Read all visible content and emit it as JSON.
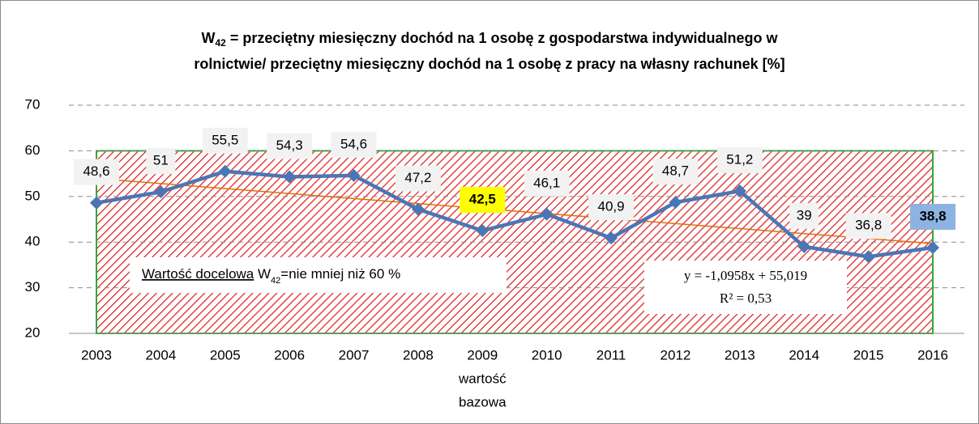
{
  "chart_data": {
    "type": "line",
    "title": {
      "symbol": "W",
      "subscript": "42",
      "line1": " = przeciętny miesięczny dochód na 1 osobę z gospodarstwa indywidualnego w",
      "line2": "rolnictwie/ przeciętny miesięczny dochód na 1 osobę z pracy na własny rachunek [%]"
    },
    "categories": [
      "2003",
      "2004",
      "2005",
      "2006",
      "2007",
      "2008",
      "2009",
      "2010",
      "2011",
      "2012",
      "2013",
      "2014",
      "2015",
      "2016"
    ],
    "series": [
      {
        "name": "W42",
        "color": "#4a76b5",
        "values": [
          48.6,
          51,
          55.5,
          54.3,
          54.6,
          47.2,
          42.5,
          46.1,
          40.9,
          48.7,
          51.2,
          39,
          36.8,
          38.8
        ],
        "value_labels": [
          "48,6",
          "51",
          "55,5",
          "54,3",
          "54,6",
          "47,2",
          "42,5",
          "46,1",
          "40,9",
          "48,7",
          "51,2",
          "39",
          "36,8",
          "38,8"
        ]
      }
    ],
    "highlights": [
      {
        "index": 6,
        "color": "#ffff00",
        "note": [
          "wartość",
          "bazowa"
        ]
      },
      {
        "index": 13,
        "color": "#8db3e2"
      }
    ],
    "target": {
      "value": 60,
      "fill": "#e02020",
      "border": "#2eaa3c",
      "label_underlined": "Wartość docelowa",
      "label_symbol": " W",
      "label_subscript": "42",
      "label_rest": "=nie mniej niż 60 %"
    },
    "trendline": {
      "slope": -1.0958,
      "intercept": 55.019,
      "color": "#e46c0a",
      "equation_label": "y = -1,0958x + 55,019",
      "r2_label": "R² = 0,53"
    },
    "ylim": [
      20,
      70
    ],
    "yticks": [
      20,
      30,
      40,
      50,
      60,
      70
    ],
    "grid": true
  }
}
